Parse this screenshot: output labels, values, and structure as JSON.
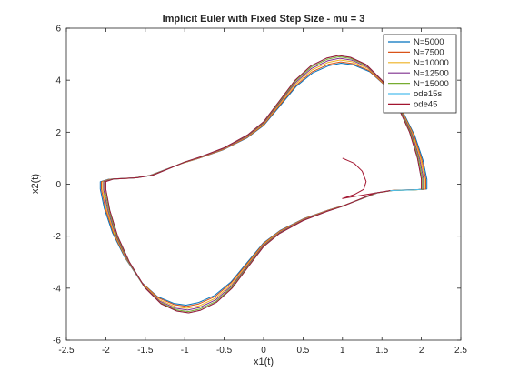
{
  "chart_data": {
    "type": "line",
    "title": "Implicit Euler with Fixed Step Size - mu = 3",
    "xlabel": "x1(t)",
    "ylabel": "x2(t)",
    "xlim": [
      -2.5,
      2.5
    ],
    "ylim": [
      -6,
      6
    ],
    "xticks": [
      "-2.5",
      "-2",
      "-1.5",
      "-1",
      "-0.5",
      "0",
      "0.5",
      "1",
      "1.5",
      "2",
      "2.5"
    ],
    "yticks": [
      "-6",
      "-4",
      "-2",
      "0",
      "2",
      "4",
      "6"
    ],
    "grid": false,
    "legend_position": "top-right",
    "limit_cycle": [
      [
        2.0,
        -0.2
      ],
      [
        1.9,
        -0.22
      ],
      [
        1.6,
        -0.25
      ],
      [
        1.4,
        -0.35
      ],
      [
        1.2,
        -0.6
      ],
      [
        1.0,
        -0.85
      ],
      [
        0.8,
        -1.05
      ],
      [
        0.5,
        -1.4
      ],
      [
        0.2,
        -1.9
      ],
      [
        0.0,
        -2.4
      ],
      [
        -0.2,
        -3.2
      ],
      [
        -0.4,
        -4.0
      ],
      [
        -0.6,
        -4.55
      ],
      [
        -0.8,
        -4.85
      ],
      [
        -0.95,
        -4.95
      ],
      [
        -1.1,
        -4.88
      ],
      [
        -1.3,
        -4.6
      ],
      [
        -1.5,
        -4.0
      ],
      [
        -1.7,
        -3.0
      ],
      [
        -1.85,
        -2.0
      ],
      [
        -1.95,
        -1.0
      ],
      [
        -2.0,
        -0.2
      ],
      [
        -2.0,
        0.1
      ],
      [
        -1.9,
        0.2
      ],
      [
        -1.6,
        0.25
      ],
      [
        -1.4,
        0.35
      ],
      [
        -1.2,
        0.6
      ],
      [
        -1.0,
        0.85
      ],
      [
        -0.8,
        1.05
      ],
      [
        -0.5,
        1.4
      ],
      [
        -0.2,
        1.9
      ],
      [
        0.0,
        2.4
      ],
      [
        0.2,
        3.2
      ],
      [
        0.4,
        4.0
      ],
      [
        0.6,
        4.55
      ],
      [
        0.8,
        4.85
      ],
      [
        0.95,
        4.95
      ],
      [
        1.1,
        4.88
      ],
      [
        1.3,
        4.6
      ],
      [
        1.5,
        4.0
      ],
      [
        1.7,
        3.0
      ],
      [
        1.85,
        2.0
      ],
      [
        1.95,
        1.0
      ],
      [
        2.0,
        0.2
      ],
      [
        2.0,
        -0.2
      ]
    ],
    "transient": [
      [
        1.0,
        1.0
      ],
      [
        1.15,
        0.8
      ],
      [
        1.25,
        0.5
      ],
      [
        1.3,
        0.1
      ],
      [
        1.27,
        -0.2
      ],
      [
        1.15,
        -0.4
      ],
      [
        1.0,
        -0.55
      ]
    ],
    "series": [
      {
        "name": "N=5000",
        "color": "#0072BD",
        "offset": [
          0.035,
          -0.06
        ]
      },
      {
        "name": "N=7500",
        "color": "#D95319",
        "offset": [
          0.028,
          -0.05
        ]
      },
      {
        "name": "N=10000",
        "color": "#EDB120",
        "offset": [
          0.021,
          -0.035
        ]
      },
      {
        "name": "N=12500",
        "color": "#7E2F8E",
        "offset": [
          0.014,
          -0.022
        ]
      },
      {
        "name": "N=15000",
        "color": "#77AC30",
        "offset": [
          0.007,
          -0.01
        ]
      },
      {
        "name": "ode15s",
        "color": "#4DBEEE",
        "offset": [
          0.0,
          0.0
        ]
      },
      {
        "name": "ode45",
        "color": "#A2142F",
        "offset": [
          0.0,
          0.0
        ]
      }
    ]
  }
}
